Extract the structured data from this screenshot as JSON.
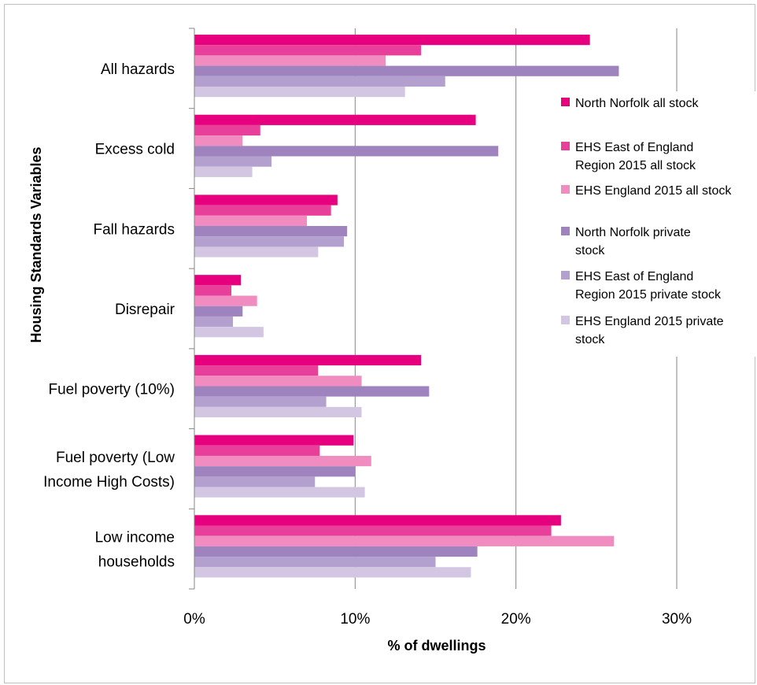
{
  "chart_data": {
    "type": "bar",
    "orientation": "horizontal",
    "title": "",
    "xlabel": "% of dwellings",
    "ylabel": "Housing Standards Variables",
    "xlim": [
      0,
      30
    ],
    "x_ticks": [
      "0%",
      "10%",
      "20%",
      "30%"
    ],
    "grid": "vertical major gridlines",
    "legend_position": "right",
    "categories": [
      [
        "All hazards"
      ],
      [
        "Excess cold"
      ],
      [
        "Fall hazards"
      ],
      [
        "Disrepair"
      ],
      [
        "Fuel poverty (10%)"
      ],
      [
        "Fuel poverty (Low",
        "Income High Costs)"
      ],
      [
        "Low income",
        "households"
      ]
    ],
    "series": [
      {
        "name": [
          "North Norfolk all stock"
        ],
        "color": "#e6007e",
        "values": [
          24.6,
          17.5,
          8.9,
          2.9,
          14.1,
          9.9,
          22.8
        ]
      },
      {
        "name": [
          "EHS East of England",
          "Region 2015 all stock"
        ],
        "color": "#e8409a",
        "values": [
          14.1,
          4.1,
          8.5,
          2.3,
          7.7,
          7.8,
          22.2
        ]
      },
      {
        "name": [
          "EHS England 2015 all stock"
        ],
        "color": "#f08cc0",
        "values": [
          11.9,
          3.0,
          7.0,
          3.9,
          10.4,
          11.0,
          26.1
        ]
      },
      {
        "name": [
          "North Norfolk private",
          "stock"
        ],
        "color": "#9e83bf",
        "values": [
          26.4,
          18.9,
          9.5,
          3.0,
          14.6,
          10.0,
          17.6
        ]
      },
      {
        "name": [
          "EHS East of England",
          "Region 2015 private stock"
        ],
        "color": "#b3a0cf",
        "values": [
          15.6,
          4.8,
          9.3,
          2.4,
          8.2,
          7.5,
          15.0
        ]
      },
      {
        "name": [
          "EHS England 2015 private",
          "stock"
        ],
        "color": "#d3c6e3",
        "values": [
          13.1,
          3.6,
          7.7,
          4.3,
          10.4,
          10.6,
          17.2
        ]
      }
    ]
  }
}
